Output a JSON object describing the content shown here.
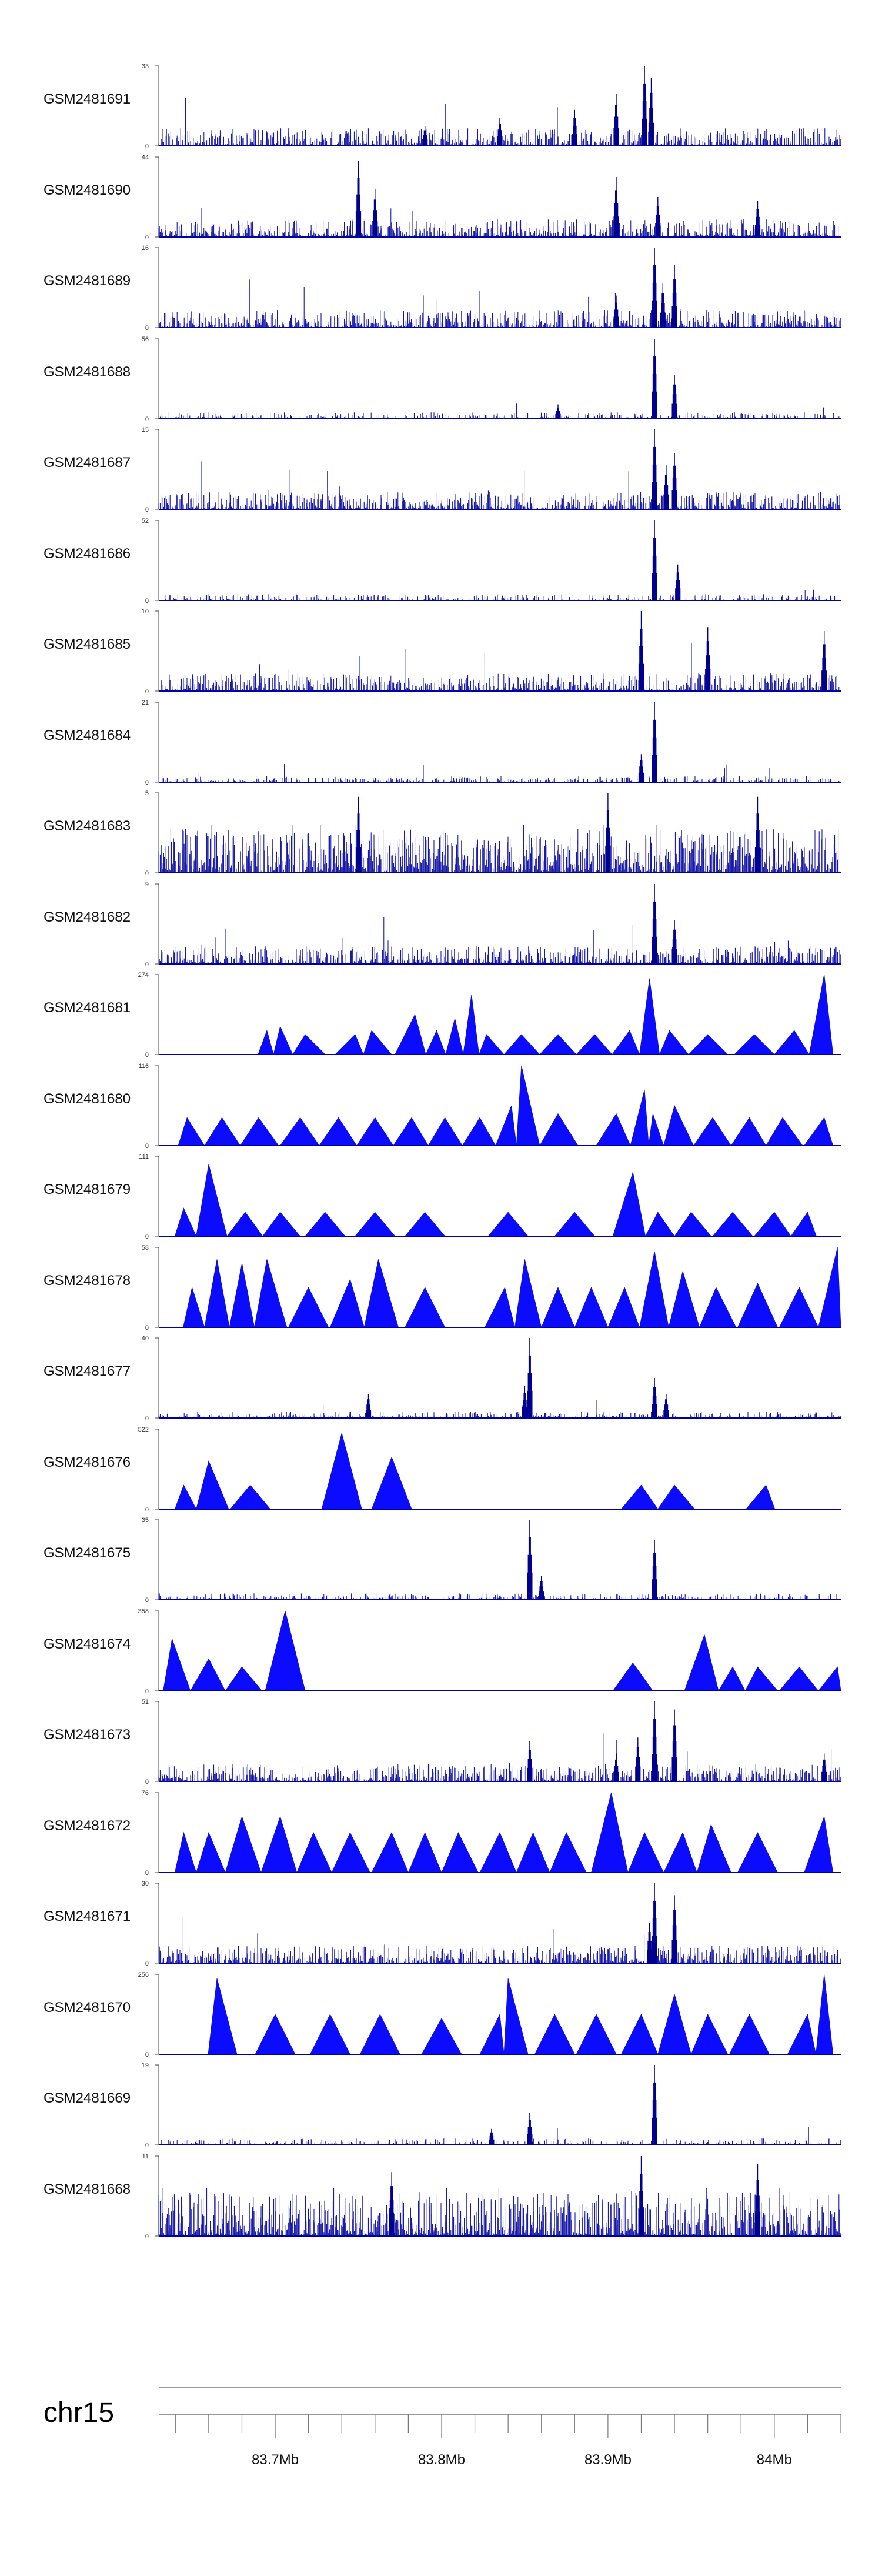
{
  "chart_data": {
    "type": "area",
    "title": "",
    "chromosome": "chr15",
    "x_range_mb": [
      83.63,
      84.04
    ],
    "x_ticks": [
      83.7,
      83.8,
      83.9,
      84.0
    ],
    "x_tick_labels": [
      "83.7Mb",
      "83.8Mb",
      "83.9Mb",
      "84Mb"
    ],
    "series": [
      {
        "name": "GSM2481691",
        "ymax": 33,
        "ymin": 0,
        "style": "dense",
        "peaks": [
          [
            83.922,
            1.0
          ],
          [
            83.926,
            0.85
          ],
          [
            83.905,
            0.65
          ],
          [
            83.88,
            0.45
          ],
          [
            83.835,
            0.35
          ],
          [
            83.79,
            0.25
          ]
        ]
      },
      {
        "name": "GSM2481690",
        "ymax": 44,
        "ymin": 0,
        "style": "dense-tri",
        "peaks": [
          [
            83.75,
            0.95
          ],
          [
            83.905,
            0.75
          ],
          [
            83.76,
            0.6
          ],
          [
            83.93,
            0.5
          ],
          [
            83.99,
            0.45
          ]
        ]
      },
      {
        "name": "GSM2481689",
        "ymax": 16,
        "ymin": 0,
        "style": "dense",
        "peaks": [
          [
            83.928,
            1.0
          ],
          [
            83.94,
            0.78
          ],
          [
            83.933,
            0.55
          ],
          [
            83.905,
            0.4
          ]
        ]
      },
      {
        "name": "GSM2481688",
        "ymax": 56,
        "ymin": 0,
        "style": "sparse",
        "peaks": [
          [
            83.928,
            1.0
          ],
          [
            83.94,
            0.55
          ],
          [
            83.87,
            0.18
          ]
        ]
      },
      {
        "name": "GSM2481687",
        "ymax": 15,
        "ymin": 0,
        "style": "dense",
        "peaks": [
          [
            83.928,
            1.0
          ],
          [
            83.94,
            0.7
          ],
          [
            83.935,
            0.55
          ]
        ]
      },
      {
        "name": "GSM2481686",
        "ymax": 52,
        "ymin": 0,
        "style": "sparse",
        "peaks": [
          [
            83.928,
            1.0
          ],
          [
            83.942,
            0.45
          ]
        ]
      },
      {
        "name": "GSM2481685",
        "ymax": 10,
        "ymin": 0,
        "style": "dense",
        "peaks": [
          [
            83.92,
            1.0
          ],
          [
            83.96,
            0.8
          ],
          [
            84.03,
            0.75
          ]
        ]
      },
      {
        "name": "GSM2481684",
        "ymax": 21,
        "ymin": 0,
        "style": "sparse",
        "peaks": [
          [
            83.928,
            1.0
          ],
          [
            83.92,
            0.35
          ]
        ]
      },
      {
        "name": "GSM2481683",
        "ymax": 5,
        "ymin": 0,
        "style": "very-dense",
        "peaks": [
          [
            83.9,
            1.0
          ],
          [
            83.75,
            0.95
          ],
          [
            83.99,
            0.95
          ]
        ]
      },
      {
        "name": "GSM2481682",
        "ymax": 9,
        "ymin": 0,
        "style": "dense",
        "peaks": [
          [
            83.928,
            1.0
          ],
          [
            83.94,
            0.55
          ]
        ]
      },
      {
        "name": "GSM2481681",
        "ymax": 274,
        "ymin": 0,
        "style": "triangles",
        "peaks": [
          [
            83.695,
            0.3
          ],
          [
            83.703,
            0.35
          ],
          [
            83.718,
            0.25
          ],
          [
            83.748,
            0.25
          ],
          [
            83.758,
            0.3
          ],
          [
            83.784,
            0.5
          ],
          [
            83.797,
            0.3
          ],
          [
            83.808,
            0.45
          ],
          [
            83.818,
            0.75
          ],
          [
            83.827,
            0.25
          ],
          [
            83.848,
            0.25
          ],
          [
            83.87,
            0.25
          ],
          [
            83.892,
            0.25
          ],
          [
            83.913,
            0.3
          ],
          [
            83.925,
            0.95
          ],
          [
            83.937,
            0.3
          ],
          [
            83.96,
            0.25
          ],
          [
            83.988,
            0.25
          ],
          [
            84.012,
            0.3
          ],
          [
            84.03,
            1.0
          ]
        ]
      },
      {
        "name": "GSM2481680",
        "ymax": 116,
        "ymin": 0,
        "style": "triangles",
        "peaks": [
          [
            83.647,
            0.35
          ],
          [
            83.668,
            0.35
          ],
          [
            83.69,
            0.35
          ],
          [
            83.715,
            0.35
          ],
          [
            83.738,
            0.35
          ],
          [
            83.76,
            0.35
          ],
          [
            83.782,
            0.35
          ],
          [
            83.802,
            0.35
          ],
          [
            83.823,
            0.35
          ],
          [
            83.842,
            0.5
          ],
          [
            83.848,
            1.0
          ],
          [
            83.87,
            0.4
          ],
          [
            83.905,
            0.4
          ],
          [
            83.922,
            0.7
          ],
          [
            83.927,
            0.4
          ],
          [
            83.94,
            0.5
          ],
          [
            83.963,
            0.35
          ],
          [
            83.985,
            0.35
          ],
          [
            84.005,
            0.35
          ],
          [
            84.03,
            0.35
          ]
        ]
      },
      {
        "name": "GSM2481679",
        "ymax": 111,
        "ymin": 0,
        "style": "triangles",
        "peaks": [
          [
            83.645,
            0.35
          ],
          [
            83.66,
            0.9
          ],
          [
            83.682,
            0.3
          ],
          [
            83.703,
            0.3
          ],
          [
            83.73,
            0.3
          ],
          [
            83.76,
            0.3
          ],
          [
            83.79,
            0.3
          ],
          [
            83.84,
            0.3
          ],
          [
            83.88,
            0.3
          ],
          [
            83.915,
            0.8
          ],
          [
            83.93,
            0.3
          ],
          [
            83.95,
            0.3
          ],
          [
            83.975,
            0.3
          ],
          [
            84.0,
            0.3
          ],
          [
            84.02,
            0.3
          ]
        ]
      },
      {
        "name": "GSM2481678",
        "ymax": 58,
        "ymin": 0,
        "style": "triangles",
        "peaks": [
          [
            83.65,
            0.5
          ],
          [
            83.665,
            0.85
          ],
          [
            83.68,
            0.8
          ],
          [
            83.695,
            0.85
          ],
          [
            83.72,
            0.5
          ],
          [
            83.745,
            0.6
          ],
          [
            83.762,
            0.85
          ],
          [
            83.79,
            0.5
          ],
          [
            83.838,
            0.5
          ],
          [
            83.85,
            0.85
          ],
          [
            83.87,
            0.5
          ],
          [
            83.89,
            0.5
          ],
          [
            83.91,
            0.5
          ],
          [
            83.928,
            0.95
          ],
          [
            83.945,
            0.7
          ],
          [
            83.965,
            0.5
          ],
          [
            83.99,
            0.55
          ],
          [
            84.015,
            0.5
          ],
          [
            84.038,
            1.0
          ]
        ]
      },
      {
        "name": "GSM2481677",
        "ymax": 40,
        "ymin": 0,
        "style": "sparse",
        "peaks": [
          [
            83.853,
            1.0
          ],
          [
            83.85,
            0.4
          ],
          [
            83.928,
            0.5
          ],
          [
            83.935,
            0.3
          ],
          [
            83.756,
            0.3
          ]
        ]
      },
      {
        "name": "GSM2481676",
        "ymax": 522,
        "ymin": 0,
        "style": "triangles-wide",
        "peaks": [
          [
            83.645,
            0.3
          ],
          [
            83.66,
            0.6
          ],
          [
            83.685,
            0.3
          ],
          [
            83.74,
            0.95
          ],
          [
            83.77,
            0.65
          ],
          [
            83.92,
            0.3
          ],
          [
            83.94,
            0.3
          ],
          [
            83.995,
            0.3
          ]
        ]
      },
      {
        "name": "GSM2481675",
        "ymax": 35,
        "ymin": 0,
        "style": "sparse",
        "peaks": [
          [
            83.853,
            1.0
          ],
          [
            83.928,
            0.75
          ],
          [
            83.86,
            0.3
          ]
        ]
      },
      {
        "name": "GSM2481674",
        "ymax": 358,
        "ymin": 0,
        "style": "triangles-wide",
        "peaks": [
          [
            83.638,
            0.65
          ],
          [
            83.66,
            0.4
          ],
          [
            83.68,
            0.3
          ],
          [
            83.706,
            1.0
          ],
          [
            83.915,
            0.35
          ],
          [
            83.958,
            0.7
          ],
          [
            83.975,
            0.3
          ],
          [
            83.99,
            0.3
          ],
          [
            84.015,
            0.3
          ],
          [
            84.038,
            0.3
          ]
        ]
      },
      {
        "name": "GSM2481673",
        "ymax": 51,
        "ymin": 0,
        "style": "dense",
        "peaks": [
          [
            83.928,
            1.0
          ],
          [
            83.94,
            0.9
          ],
          [
            83.918,
            0.55
          ],
          [
            83.853,
            0.5
          ],
          [
            83.905,
            0.35
          ],
          [
            84.03,
            0.35
          ]
        ]
      },
      {
        "name": "GSM2481672",
        "ymax": 76,
        "ymin": 0,
        "style": "triangles",
        "peaks": [
          [
            83.645,
            0.5
          ],
          [
            83.66,
            0.5
          ],
          [
            83.68,
            0.7
          ],
          [
            83.703,
            0.7
          ],
          [
            83.723,
            0.5
          ],
          [
            83.745,
            0.5
          ],
          [
            83.77,
            0.5
          ],
          [
            83.79,
            0.5
          ],
          [
            83.81,
            0.5
          ],
          [
            83.835,
            0.5
          ],
          [
            83.855,
            0.5
          ],
          [
            83.875,
            0.5
          ],
          [
            83.902,
            1.0
          ],
          [
            83.922,
            0.5
          ],
          [
            83.945,
            0.5
          ],
          [
            83.962,
            0.6
          ],
          [
            83.99,
            0.5
          ],
          [
            84.03,
            0.7
          ]
        ]
      },
      {
        "name": "GSM2481671",
        "ymax": 30,
        "ymin": 0,
        "style": "dense",
        "peaks": [
          [
            83.928,
            1.0
          ],
          [
            83.94,
            0.85
          ],
          [
            83.925,
            0.5
          ]
        ]
      },
      {
        "name": "GSM2481670",
        "ymax": 256,
        "ymin": 0,
        "style": "triangles",
        "peaks": [
          [
            83.665,
            0.95
          ],
          [
            83.7,
            0.5
          ],
          [
            83.733,
            0.5
          ],
          [
            83.763,
            0.5
          ],
          [
            83.8,
            0.45
          ],
          [
            83.835,
            0.5
          ],
          [
            83.84,
            0.95
          ],
          [
            83.868,
            0.5
          ],
          [
            83.893,
            0.5
          ],
          [
            83.92,
            0.5
          ],
          [
            83.94,
            0.75
          ],
          [
            83.96,
            0.5
          ],
          [
            83.985,
            0.5
          ],
          [
            84.02,
            0.5
          ],
          [
            84.03,
            1.0
          ]
        ]
      },
      {
        "name": "GSM2481669",
        "ymax": 19,
        "ymin": 0,
        "style": "sparse",
        "peaks": [
          [
            83.928,
            1.0
          ],
          [
            83.853,
            0.4
          ],
          [
            83.83,
            0.2
          ]
        ]
      },
      {
        "name": "GSM2481668",
        "ymax": 11,
        "ymin": 0,
        "style": "very-dense",
        "peaks": [
          [
            83.92,
            1.0
          ],
          [
            83.99,
            0.9
          ],
          [
            83.77,
            0.8
          ]
        ]
      }
    ]
  }
}
